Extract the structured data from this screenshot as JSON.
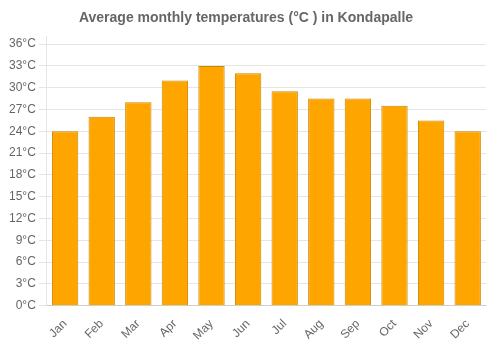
{
  "chart_data": {
    "type": "bar",
    "title": "Average monthly temperatures (°C ) in Kondapalle",
    "categories": [
      "Jan",
      "Feb",
      "Mar",
      "Apr",
      "May",
      "Jun",
      "Jul",
      "Aug",
      "Sep",
      "Oct",
      "Nov",
      "Dec"
    ],
    "values": [
      24,
      26,
      28,
      31,
      33,
      32,
      29.5,
      28.5,
      28.5,
      27.5,
      25.5,
      24
    ],
    "color": "#FFA500",
    "ylim": [
      0,
      37
    ],
    "yticks": [
      {
        "value": 0,
        "label": "0°C"
      },
      {
        "value": 3,
        "label": "3°C"
      },
      {
        "value": 6,
        "label": "6°C"
      },
      {
        "value": 9,
        "label": "9°C"
      },
      {
        "value": 12,
        "label": "12°C"
      },
      {
        "value": 15,
        "label": "15°C"
      },
      {
        "value": 18,
        "label": "18°C"
      },
      {
        "value": 21,
        "label": "21°C"
      },
      {
        "value": 24,
        "label": "24°C"
      },
      {
        "value": 27,
        "label": "27°C"
      },
      {
        "value": 30,
        "label": "30°C"
      },
      {
        "value": 33,
        "label": "33°C"
      },
      {
        "value": 36,
        "label": "36°C"
      }
    ],
    "grid": true
  }
}
